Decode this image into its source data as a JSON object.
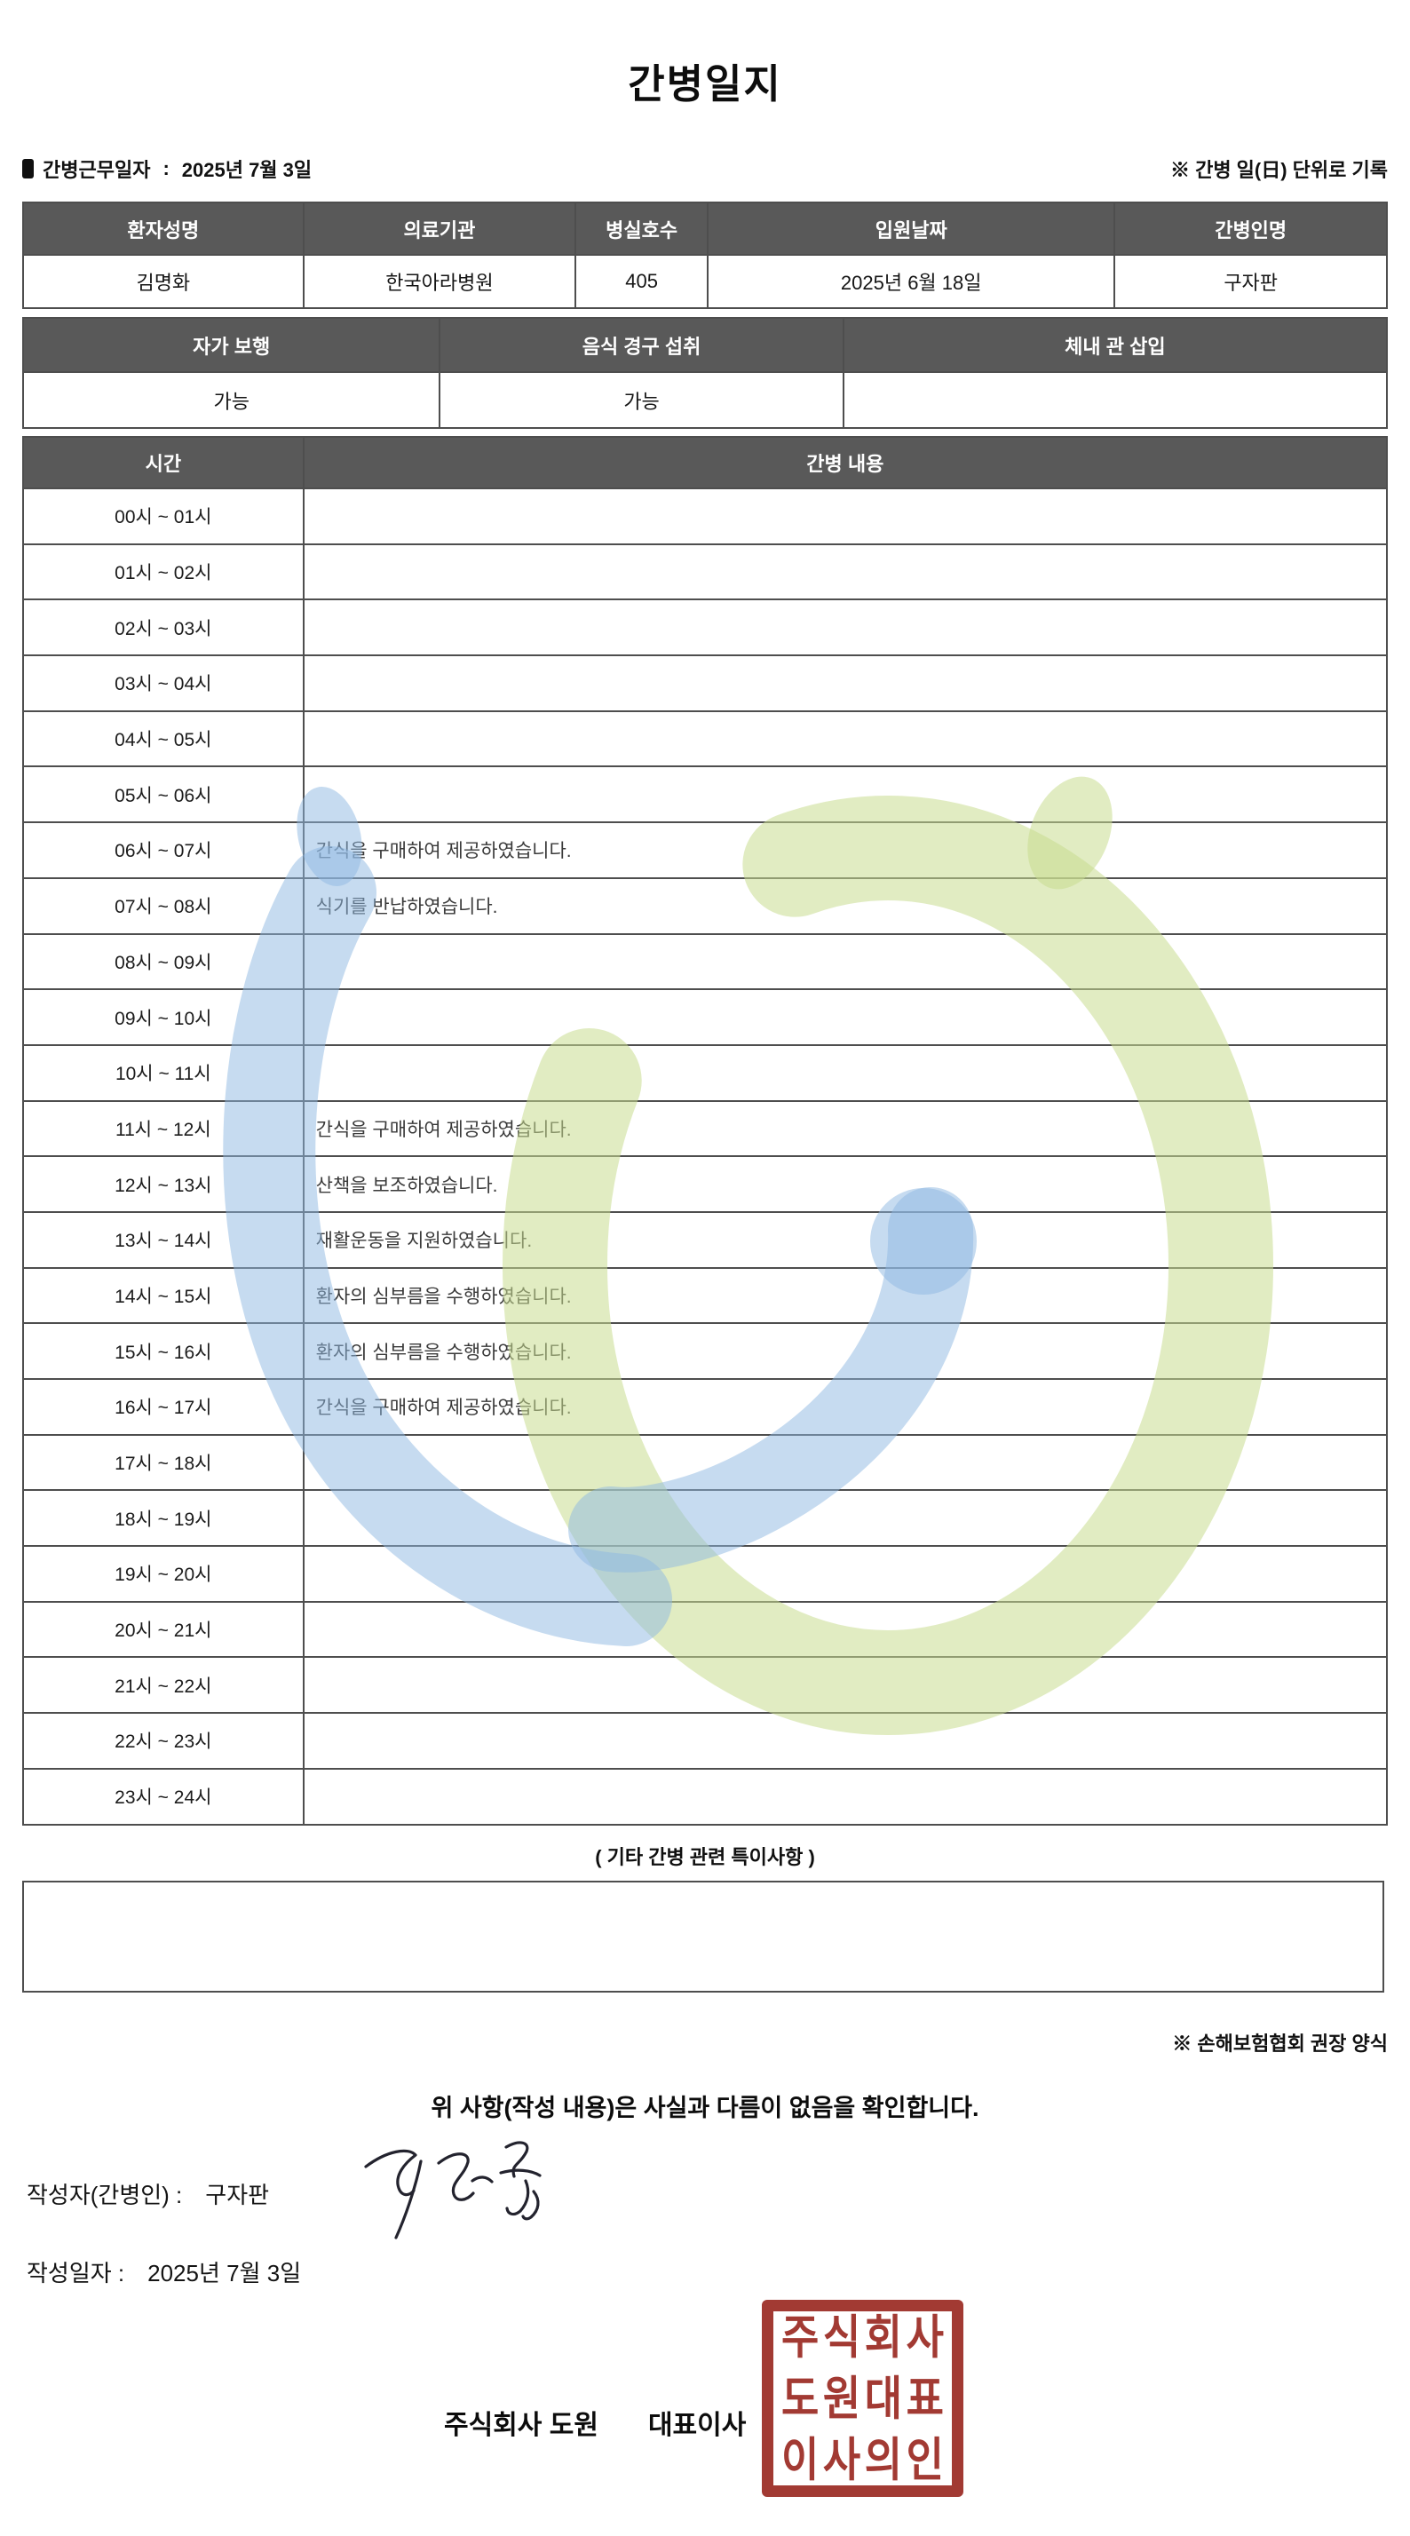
{
  "title": "간병일지",
  "meta": {
    "work_date_label": "간병근무일자",
    "colon": ":",
    "work_date": "2025년 7월 3일",
    "unit_note": "※ 간병 일(日) 단위로 기록"
  },
  "patient_table": {
    "headers": [
      "환자성명",
      "의료기관",
      "병실호수",
      "입원날짜",
      "간병인명"
    ],
    "values": [
      "김명화",
      "한국아라병원",
      "405",
      "2025년 6월 18일",
      "구자판"
    ]
  },
  "status_table": {
    "headers": [
      "자가 보행",
      "음식 경구 섭취",
      "체내 관 삽입"
    ],
    "values": [
      "가능",
      "가능",
      ""
    ]
  },
  "care_table": {
    "time_header": "시간",
    "content_header": "간병 내용",
    "rows": [
      {
        "time": "00시 ~ 01시",
        "content": ""
      },
      {
        "time": "01시 ~ 02시",
        "content": ""
      },
      {
        "time": "02시 ~ 03시",
        "content": ""
      },
      {
        "time": "03시 ~ 04시",
        "content": ""
      },
      {
        "time": "04시 ~ 05시",
        "content": ""
      },
      {
        "time": "05시 ~ 06시",
        "content": ""
      },
      {
        "time": "06시 ~ 07시",
        "content": "간식을 구매하여 제공하였습니다."
      },
      {
        "time": "07시 ~ 08시",
        "content": "식기를 반납하였습니다."
      },
      {
        "time": "08시 ~ 09시",
        "content": ""
      },
      {
        "time": "09시 ~ 10시",
        "content": ""
      },
      {
        "time": "10시 ~ 11시",
        "content": ""
      },
      {
        "time": "11시 ~ 12시",
        "content": "간식을 구매하여 제공하였습니다."
      },
      {
        "time": "12시 ~ 13시",
        "content": "산책을 보조하였습니다."
      },
      {
        "time": "13시 ~ 14시",
        "content": "재활운동을 지원하였습니다."
      },
      {
        "time": "14시 ~ 15시",
        "content": "환자의 심부름을 수행하였습니다."
      },
      {
        "time": "15시 ~ 16시",
        "content": "환자의 심부름을 수행하였습니다."
      },
      {
        "time": "16시 ~ 17시",
        "content": "간식을 구매하여 제공하였습니다."
      },
      {
        "time": "17시 ~ 18시",
        "content": ""
      },
      {
        "time": "18시 ~ 19시",
        "content": ""
      },
      {
        "time": "19시 ~ 20시",
        "content": ""
      },
      {
        "time": "20시 ~ 21시",
        "content": ""
      },
      {
        "time": "21시 ~ 22시",
        "content": ""
      },
      {
        "time": "22시 ~ 23시",
        "content": ""
      },
      {
        "time": "23시 ~ 24시",
        "content": ""
      }
    ]
  },
  "extras": {
    "special_note_title": "( 기타 간병 관련 특이사항 )",
    "special_note_content": "",
    "form_note": "※ 손해보험협회 권장 양식",
    "confirmation": "위 사항(작성 내용)은 사실과 다름이 없음을 확인합니다."
  },
  "signature": {
    "writer_label": "작성자(간병인) :",
    "writer_name": "구자판",
    "date_label": "작성일자 :",
    "date_value": "2025년 7월 3일",
    "company": "주식회사 도원",
    "ceo_label": "대표이사",
    "stamp_lines": [
      "주식회사",
      "도원대표",
      "이사의인"
    ]
  },
  "colors": {
    "header_bg": "#595959",
    "table_border": "#4e4e4e",
    "stamp_red": "#a23a33",
    "watermark_blue": "#8db8e2",
    "watermark_green": "#c8dd90"
  }
}
